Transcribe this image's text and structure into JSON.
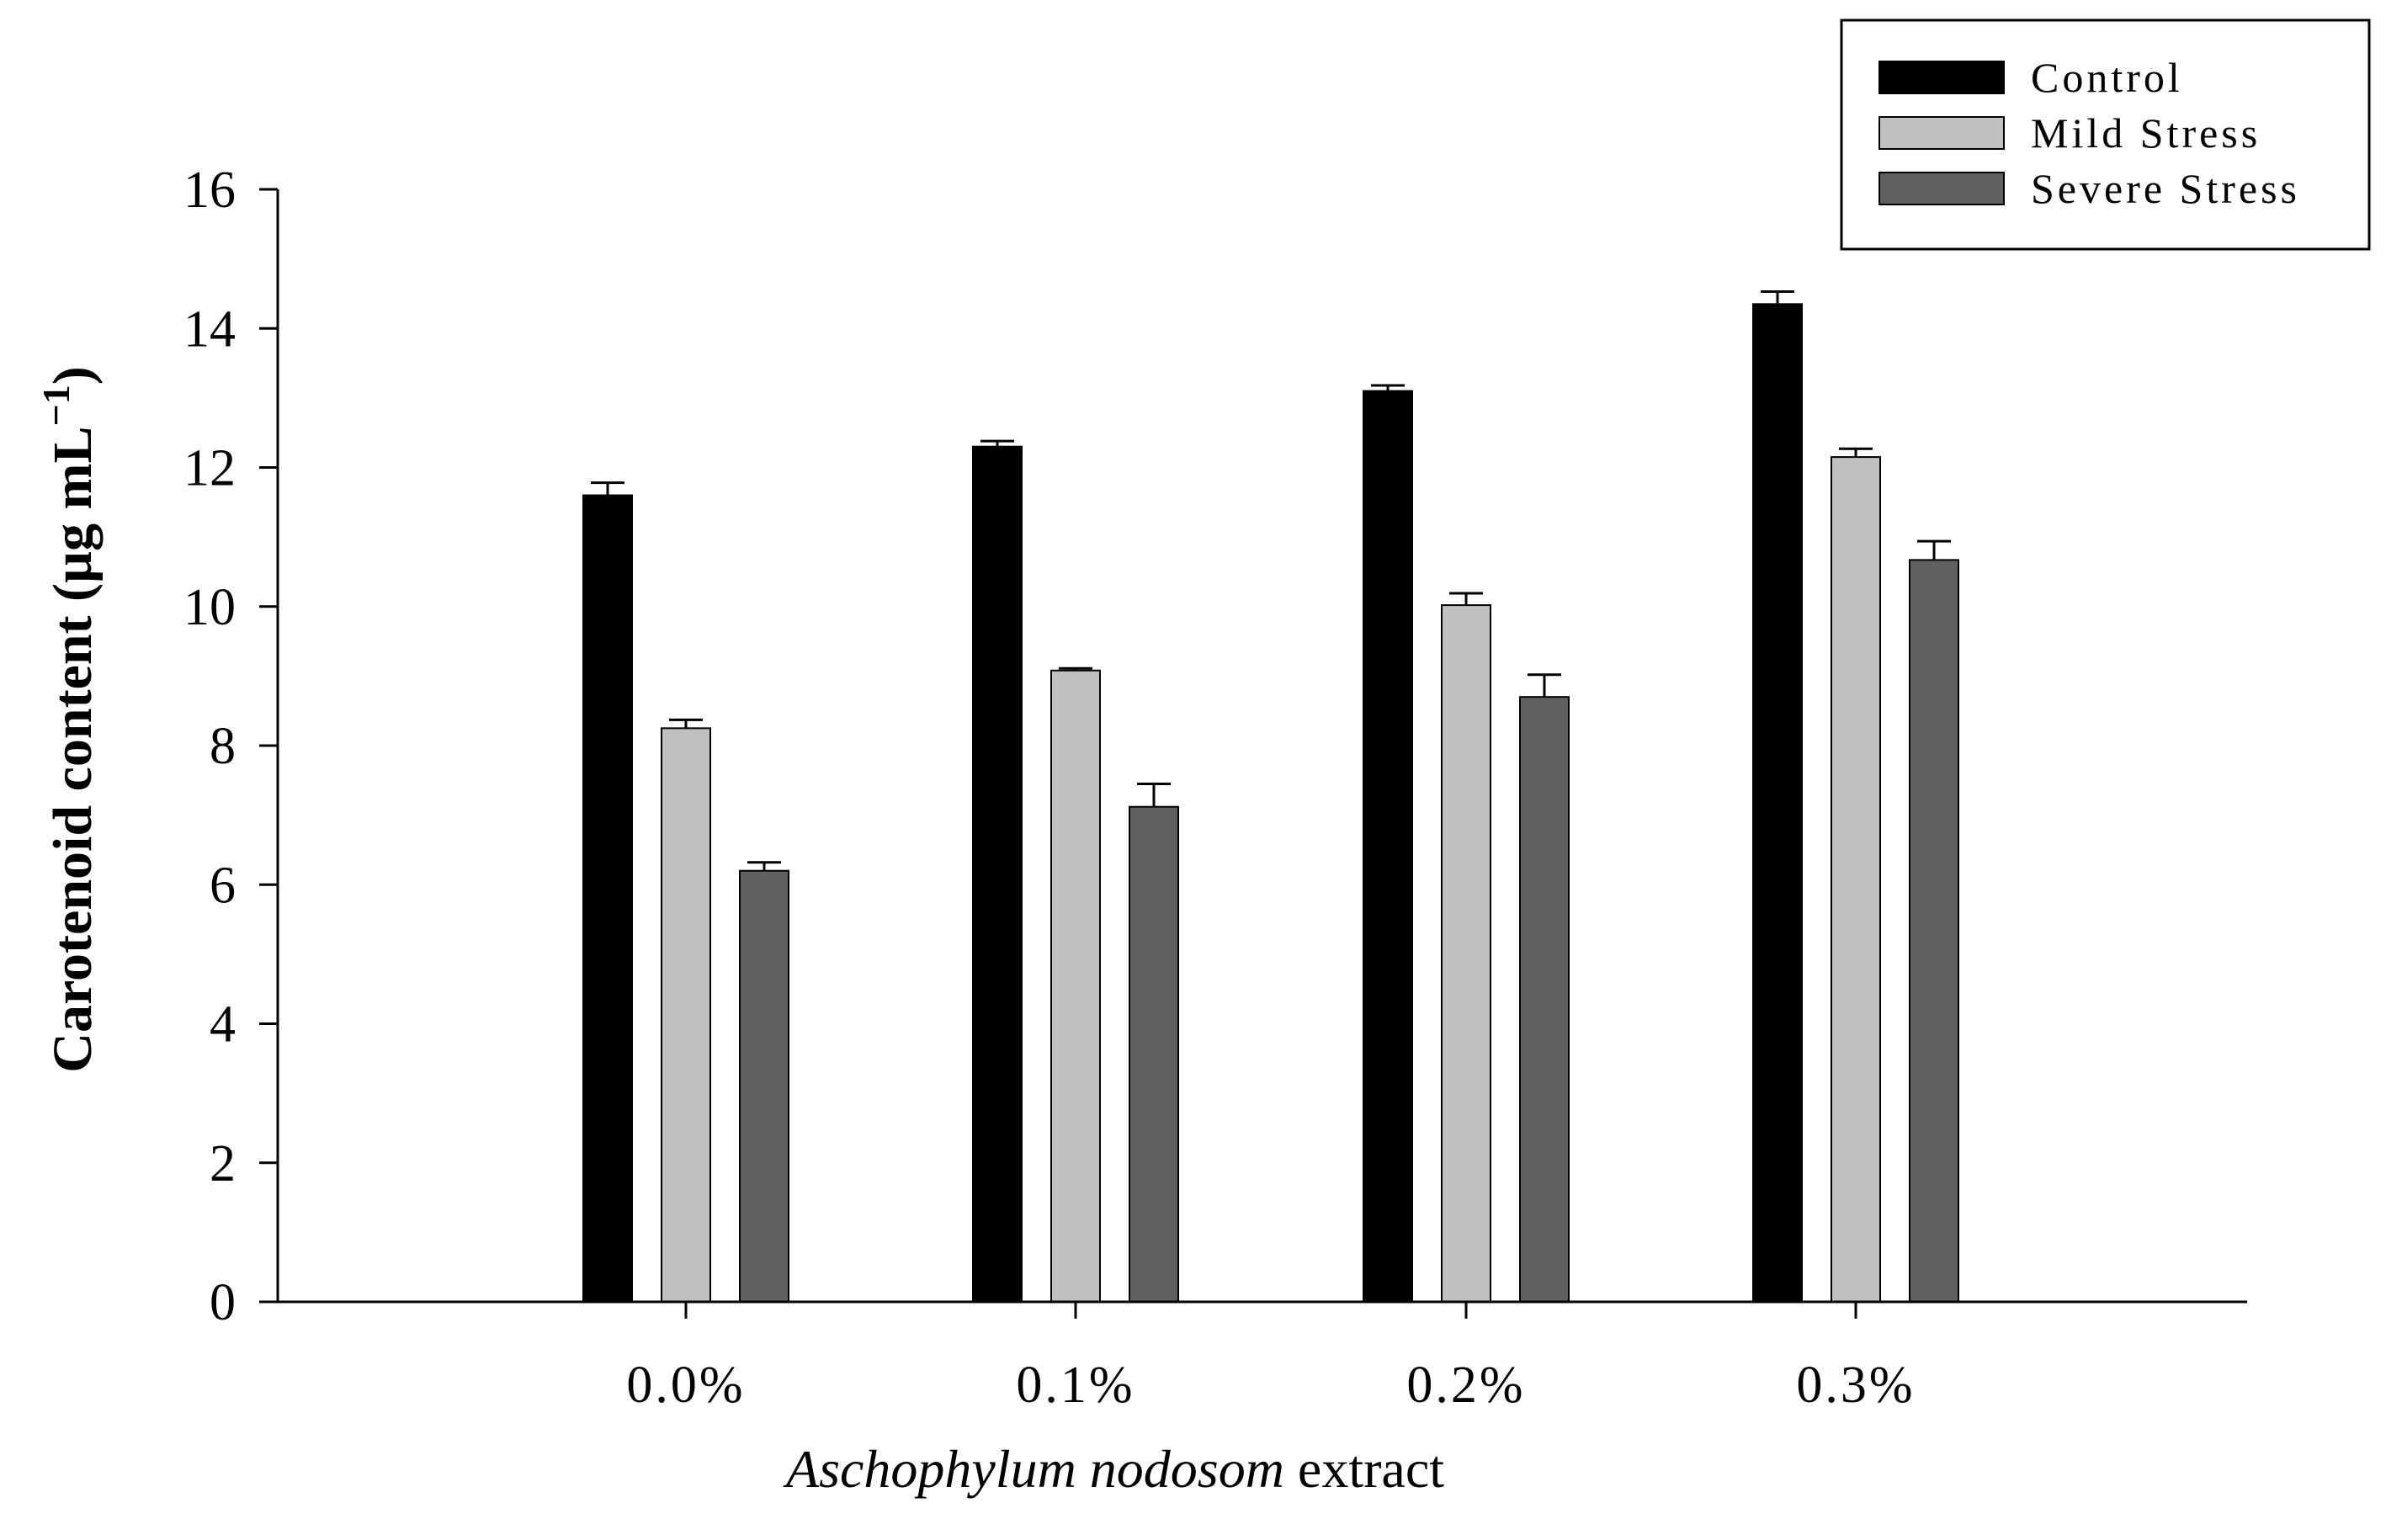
{
  "chart_data": {
    "type": "bar",
    "categories": [
      "0.0%",
      "0.1%",
      "0.2%",
      "0.3%"
    ],
    "series": [
      {
        "name": "Control",
        "color": "#000000",
        "values": [
          11.6,
          12.3,
          13.1,
          14.35
        ],
        "errors": [
          0.18,
          0.08,
          0.08,
          0.18
        ]
      },
      {
        "name": "Mild Stress",
        "color": "#c0c0c0",
        "values": [
          8.25,
          9.08,
          10.02,
          12.15
        ],
        "errors": [
          0.12,
          0.03,
          0.17,
          0.12
        ]
      },
      {
        "name": "Severe Stress",
        "color": "#606060",
        "values": [
          6.2,
          7.12,
          8.7,
          10.67
        ],
        "errors": [
          0.12,
          0.33,
          0.32,
          0.27
        ]
      }
    ],
    "yticks": [
      0,
      2,
      4,
      6,
      8,
      10,
      12,
      14,
      16
    ],
    "ylim": [
      0,
      16
    ],
    "xlabel": {
      "italic_part": "Aschophylum nodosom",
      "plain_part": " extract"
    },
    "ylabel": {
      "main": "Carotenoid content (µg mL",
      "superscript": "−1",
      "close": ")"
    },
    "legend_position": "top-right",
    "grid": false
  }
}
